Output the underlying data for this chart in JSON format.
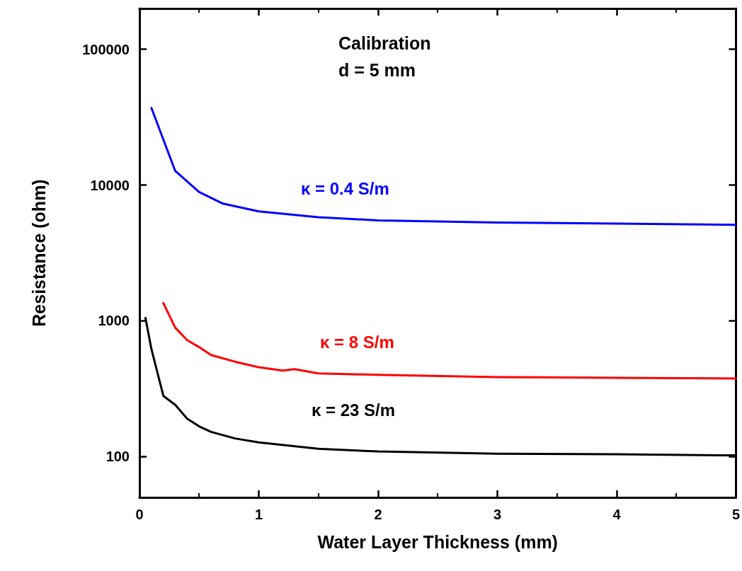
{
  "chart_data": {
    "type": "line",
    "xlabel": "Water Layer Thickness (mm)",
    "ylabel": "Resistance (ohm)",
    "annotations": [
      "Calibration",
      "d = 5 mm"
    ],
    "log": "y",
    "xlim": [
      0,
      5
    ],
    "ylim": [
      50,
      200000
    ],
    "xticks": [
      0,
      1,
      2,
      3,
      4,
      5
    ],
    "yticks": [
      100,
      1000,
      10000,
      100000
    ],
    "grid": false,
    "legend": false,
    "marker": "none",
    "line_style": "solid",
    "series": [
      {
        "name": "κ = 0.4 S/m",
        "color": "#0000ff",
        "x": [
          0.1,
          0.3,
          0.5,
          0.7,
          1,
          1.5,
          2,
          3,
          4,
          5
        ],
        "values": [
          37000,
          12700,
          8900,
          7300,
          6400,
          5800,
          5500,
          5300,
          5200,
          5100
        ]
      },
      {
        "name": "κ = 8 S/m",
        "color": "#ff0000",
        "x": [
          0.2,
          0.3,
          0.4,
          0.5,
          0.6,
          0.8,
          1,
          1.2,
          1.3,
          1.5,
          2,
          3,
          4,
          5
        ],
        "values": [
          1350,
          890,
          720,
          640,
          560,
          500,
          455,
          430,
          440,
          410,
          400,
          385,
          380,
          376
        ]
      },
      {
        "name": "κ = 23 S/m",
        "color": "#000000",
        "x": [
          0.05,
          0.1,
          0.2,
          0.3,
          0.4,
          0.5,
          0.6,
          0.8,
          1,
          1.5,
          2,
          3,
          4,
          5
        ],
        "values": [
          1050,
          620,
          280,
          240,
          190,
          167,
          152,
          136,
          127,
          114,
          109,
          105,
          104,
          102
        ]
      }
    ]
  }
}
